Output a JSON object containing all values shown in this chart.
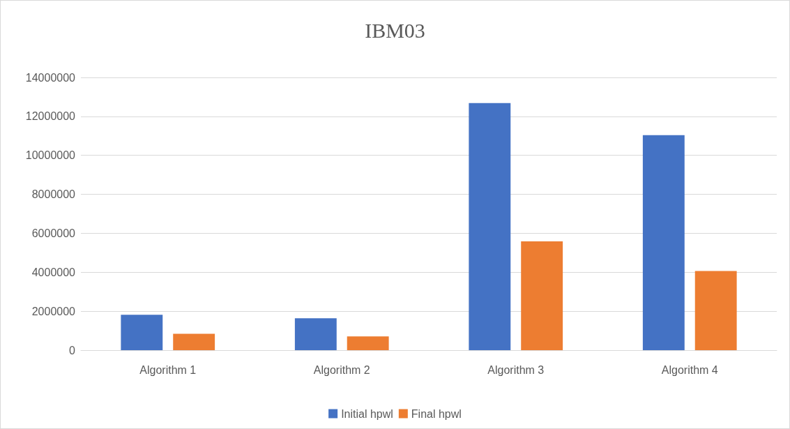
{
  "chart_data": {
    "type": "bar",
    "title": "IBM03",
    "categories": [
      "Algorithm 1",
      "Algorithm 2",
      "Algorithm 3",
      "Algorithm 4"
    ],
    "series": [
      {
        "name": "Initial hpwl",
        "color": "#4472c4",
        "values": [
          1820000,
          1640000,
          12680000,
          11040000
        ]
      },
      {
        "name": "Final hpwl",
        "color": "#ed7d31",
        "values": [
          840000,
          710000,
          5590000,
          4060000
        ]
      }
    ],
    "ylim": [
      0,
      14000000
    ],
    "yticks": [
      0,
      2000000,
      4000000,
      6000000,
      8000000,
      10000000,
      12000000,
      14000000
    ],
    "grid": "y",
    "legend": "bottom"
  }
}
